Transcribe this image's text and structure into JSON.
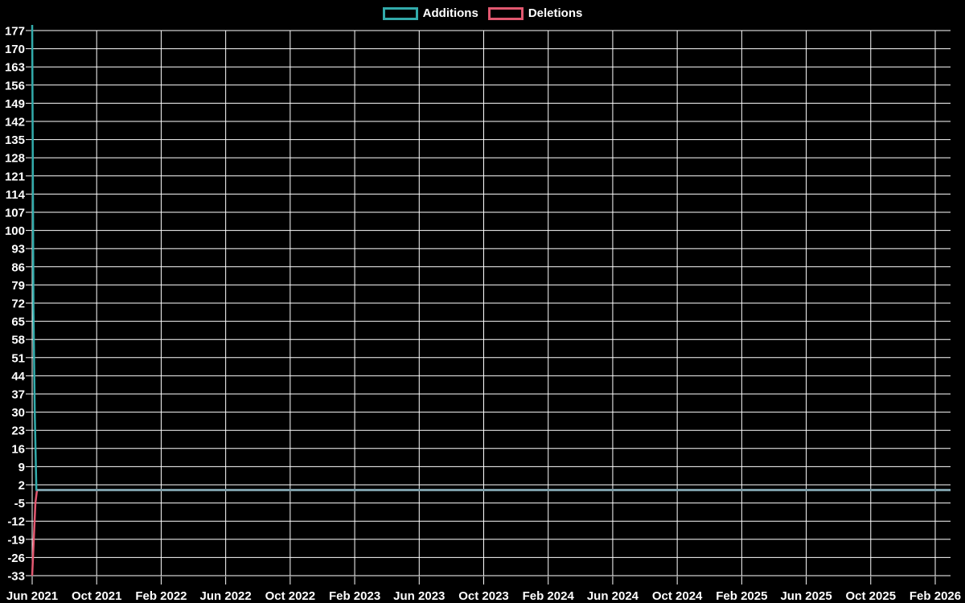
{
  "colors": {
    "background": "#000000",
    "grid": "#ffffff",
    "text": "#ffffff",
    "additions": "#32abab",
    "deletions": "#e25870",
    "zero_overlap_line": "#7d9ea9"
  },
  "legend": {
    "items": [
      {
        "label": "Additions",
        "color": "#32abab"
      },
      {
        "label": "Deletions",
        "color": "#e25870"
      }
    ]
  },
  "chart_data": {
    "type": "line",
    "title": "",
    "xlabel": "",
    "ylabel": "",
    "grid": true,
    "legend_position": "top-center",
    "x_axis": {
      "unit": "months since Jun 2021",
      "tick_interval_months": 4,
      "tick_labels": [
        "Jun 2021",
        "Oct 2021",
        "Feb 2022",
        "Jun 2022",
        "Oct 2022",
        "Feb 2023",
        "Jun 2023",
        "Oct 2023",
        "Feb 2024",
        "Jun 2024",
        "Oct 2024",
        "Feb 2025",
        "Jun 2025",
        "Oct 2025",
        "Feb 2026"
      ],
      "range_months": [
        0,
        56.95
      ]
    },
    "y_axis": {
      "tick_labels": [
        177,
        170,
        163,
        156,
        149,
        142,
        135,
        128,
        121,
        114,
        107,
        100,
        93,
        86,
        79,
        72,
        65,
        58,
        51,
        44,
        37,
        30,
        23,
        16,
        9,
        2,
        -5,
        -12,
        -19,
        -26,
        -33
      ],
      "tick_step": 7,
      "ylim": [
        -33,
        177
      ]
    },
    "series": [
      {
        "name": "Additions",
        "color": "#32abab",
        "points": [
          [
            0,
            180
          ],
          [
            0.08,
            70
          ],
          [
            0.16,
            30
          ],
          [
            0.26,
            0
          ],
          [
            56.95,
            0
          ]
        ]
      },
      {
        "name": "Deletions",
        "color": "#e25870",
        "points": [
          [
            0,
            -33
          ],
          [
            0.1,
            -19
          ],
          [
            0.2,
            -5
          ],
          [
            0.3,
            0
          ],
          [
            56.95,
            0
          ]
        ]
      }
    ]
  }
}
